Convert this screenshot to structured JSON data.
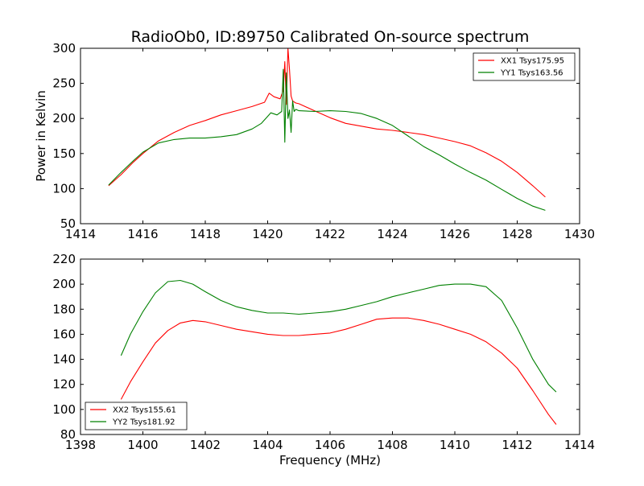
{
  "chart_data": [
    {
      "type": "line",
      "title": "RadioOb0, ID:89750 Calibrated On-source spectrum",
      "xlabel": "",
      "ylabel": "Power in Kelvin",
      "xlim": [
        1414,
        1430
      ],
      "ylim": [
        50,
        300
      ],
      "xticks": [
        1414,
        1416,
        1418,
        1420,
        1422,
        1424,
        1426,
        1428,
        1430
      ],
      "yticks": [
        50,
        100,
        150,
        200,
        250,
        300
      ],
      "grid": false,
      "legend": "top-right",
      "series": [
        {
          "name": "XX1 Tsys175.95",
          "color": "#ff0000",
          "x": [
            1414.9,
            1415.3,
            1415.7,
            1416.0,
            1416.5,
            1417.0,
            1417.5,
            1418.0,
            1418.5,
            1419.0,
            1419.5,
            1419.9,
            1420.05,
            1420.2,
            1420.4,
            1420.5,
            1420.55,
            1420.6,
            1420.65,
            1420.7,
            1420.75,
            1420.8,
            1420.9,
            1421.0,
            1421.5,
            1422.0,
            1422.5,
            1423.0,
            1423.5,
            1424.0,
            1424.5,
            1425.0,
            1425.5,
            1426.0,
            1426.5,
            1427.0,
            1427.5,
            1428.0,
            1428.5,
            1428.9
          ],
          "y": [
            104,
            120,
            138,
            150,
            168,
            180,
            190,
            197,
            205,
            211,
            217,
            223,
            236,
            231,
            228,
            240,
            281,
            220,
            300,
            270,
            232,
            225,
            222,
            221,
            211,
            201,
            193,
            189,
            185,
            183,
            180,
            177,
            172,
            167,
            161,
            151,
            139,
            123,
            104,
            88
          ]
        },
        {
          "name": "YY1 Tsys163.56",
          "color": "#008000",
          "x": [
            1414.9,
            1415.3,
            1415.7,
            1416.0,
            1416.5,
            1417.0,
            1417.5,
            1418.0,
            1418.5,
            1419.0,
            1419.5,
            1419.8,
            1420.0,
            1420.1,
            1420.3,
            1420.45,
            1420.5,
            1420.55,
            1420.6,
            1420.65,
            1420.7,
            1420.75,
            1420.8,
            1420.85,
            1420.9,
            1421.0,
            1421.5,
            1422.0,
            1422.5,
            1423.0,
            1423.5,
            1424.0,
            1424.5,
            1425.0,
            1425.5,
            1426.0,
            1426.5,
            1427.0,
            1427.5,
            1428.0,
            1428.5,
            1428.9
          ],
          "y": [
            105,
            123,
            140,
            152,
            165,
            170,
            172,
            172,
            174,
            177,
            185,
            193,
            203,
            208,
            205,
            210,
            270,
            166,
            265,
            200,
            212,
            180,
            225,
            210,
            213,
            211,
            210,
            211,
            210,
            207,
            200,
            190,
            175,
            160,
            148,
            135,
            123,
            112,
            99,
            86,
            75,
            69
          ]
        }
      ]
    },
    {
      "type": "line",
      "title": "",
      "xlabel": "Frequency (MHz)",
      "ylabel": "",
      "xlim": [
        1398,
        1414
      ],
      "ylim": [
        80,
        220
      ],
      "xticks": [
        1398,
        1400,
        1402,
        1404,
        1406,
        1408,
        1410,
        1412,
        1414
      ],
      "yticks": [
        80,
        100,
        120,
        140,
        160,
        180,
        200,
        220
      ],
      "grid": false,
      "legend": "bottom-left",
      "series": [
        {
          "name": "XX2 Tsys155.61",
          "color": "#ff0000",
          "x": [
            1399.3,
            1399.6,
            1400.0,
            1400.4,
            1400.8,
            1401.2,
            1401.6,
            1402.0,
            1402.5,
            1403.0,
            1403.5,
            1404.0,
            1404.5,
            1405.0,
            1405.5,
            1406.0,
            1406.5,
            1407.0,
            1407.5,
            1408.0,
            1408.5,
            1409.0,
            1409.5,
            1410.0,
            1410.5,
            1411.0,
            1411.5,
            1412.0,
            1412.5,
            1413.0,
            1413.25
          ],
          "y": [
            108,
            122,
            138,
            153,
            163,
            169,
            171,
            170,
            167,
            164,
            162,
            160,
            159,
            159,
            160,
            161,
            164,
            168,
            172,
            173,
            173,
            171,
            168,
            164,
            160,
            154,
            145,
            133,
            115,
            96,
            88
          ]
        },
        {
          "name": "YY2 Tsys181.92",
          "color": "#008000",
          "x": [
            1399.3,
            1399.6,
            1400.0,
            1400.4,
            1400.8,
            1401.2,
            1401.6,
            1402.0,
            1402.5,
            1403.0,
            1403.5,
            1404.0,
            1404.5,
            1405.0,
            1405.5,
            1406.0,
            1406.5,
            1407.0,
            1407.5,
            1408.0,
            1408.5,
            1409.0,
            1409.5,
            1410.0,
            1410.5,
            1411.0,
            1411.5,
            1412.0,
            1412.5,
            1413.0,
            1413.25
          ],
          "y": [
            143,
            160,
            178,
            193,
            202,
            203,
            200,
            194,
            187,
            182,
            179,
            177,
            177,
            176,
            177,
            178,
            180,
            183,
            186,
            190,
            193,
            196,
            199,
            200,
            200,
            198,
            187,
            165,
            140,
            120,
            114
          ]
        }
      ]
    }
  ]
}
